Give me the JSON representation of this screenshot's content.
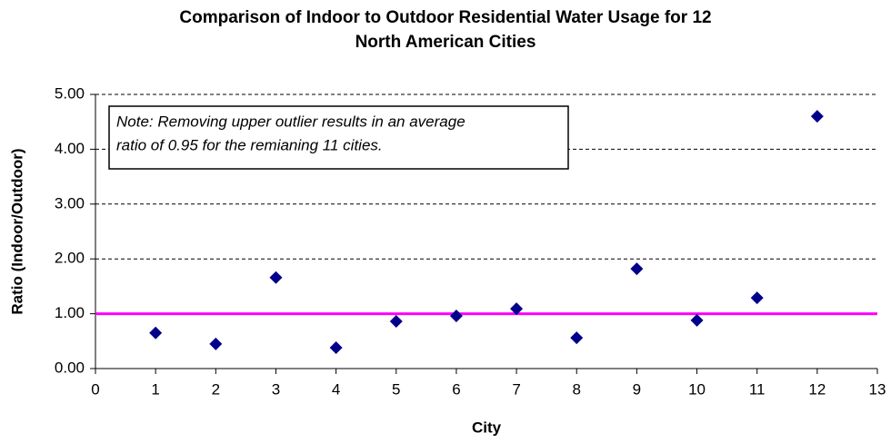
{
  "chart_data": {
    "type": "scatter",
    "title": [
      "Comparison  of Indoor to Outdoor Residential Water Usage for 12",
      "North American  Cities"
    ],
    "x_label": "City",
    "y_label": "Ratio (Indoor/Outdoor)",
    "annotation": [
      "Note:  Removing upper outlier results in an average",
      "ratio of 0.95 for the remianing 11 cities."
    ],
    "series": [
      {
        "name": "Ratio",
        "color": "#00008b",
        "x": [
          1,
          2,
          3,
          4,
          5,
          6,
          7,
          8,
          9,
          10,
          11,
          12
        ],
        "values": [
          0.65,
          0.45,
          1.66,
          0.38,
          0.86,
          0.96,
          1.09,
          0.56,
          1.82,
          0.88,
          1.29,
          4.6
        ]
      }
    ],
    "reference_line": {
      "value": 1,
      "color": "#ff00ff"
    },
    "xlim": [
      0,
      13
    ],
    "xticks": [
      0,
      1,
      2,
      3,
      4,
      5,
      6,
      7,
      8,
      9,
      10,
      11,
      12,
      13
    ],
    "ylim": [
      0,
      5
    ],
    "yticks": [
      {
        "value": 0,
        "label": "0.00"
      },
      {
        "value": 1,
        "label": "1.00"
      },
      {
        "value": 2,
        "label": "2.00"
      },
      {
        "value": 3,
        "label": "3.00"
      },
      {
        "value": 4,
        "label": "4.00"
      },
      {
        "value": 5,
        "label": "5.00"
      }
    ],
    "grid": true
  }
}
